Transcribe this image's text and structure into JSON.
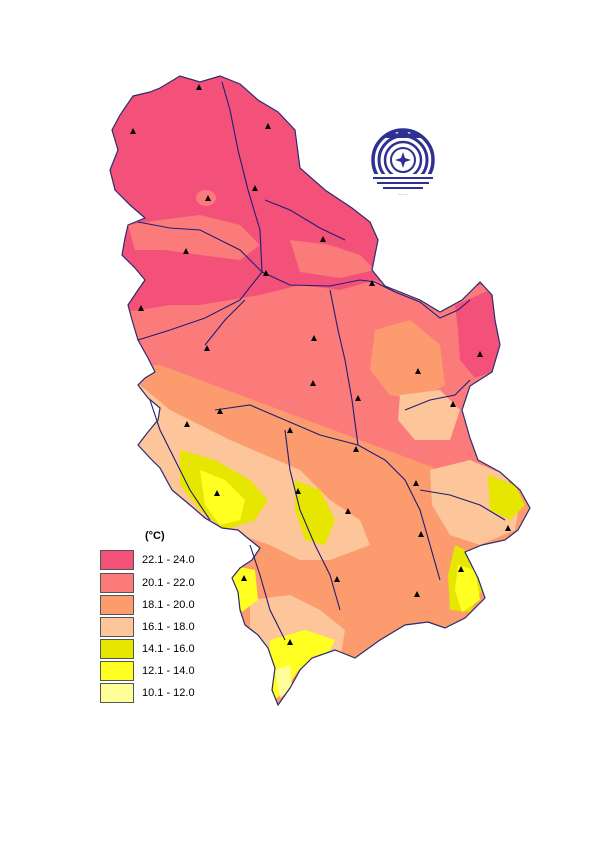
{
  "map": {
    "region_colors": [
      "#f4517a",
      "#fb7b7b",
      "#fb9b6e",
      "#fcc59a",
      "#e6e600",
      "#ffff22",
      "#ffff9a"
    ],
    "border_color": "#2b2b6e",
    "river_color": "#1e1e78",
    "station_color": "#000000"
  },
  "logo": {
    "color": "#2e3192",
    "name": "hydrometeorological-service-logo"
  },
  "legend": {
    "unit": "(°C)",
    "items": [
      {
        "label": "22.1 - 24.0",
        "color": "#f4517a"
      },
      {
        "label": "20.1 - 22.0",
        "color": "#fb7b7b"
      },
      {
        "label": "18.1 - 20.0",
        "color": "#fb9b6e"
      },
      {
        "label": "16.1 - 18.0",
        "color": "#fcc59a"
      },
      {
        "label": "14.1 - 16.0",
        "color": "#e6e600"
      },
      {
        "label": "12.1 - 14.0",
        "color": "#ffff22"
      },
      {
        "label": "10.1 - 12.0",
        "color": "#ffff9a"
      }
    ]
  }
}
